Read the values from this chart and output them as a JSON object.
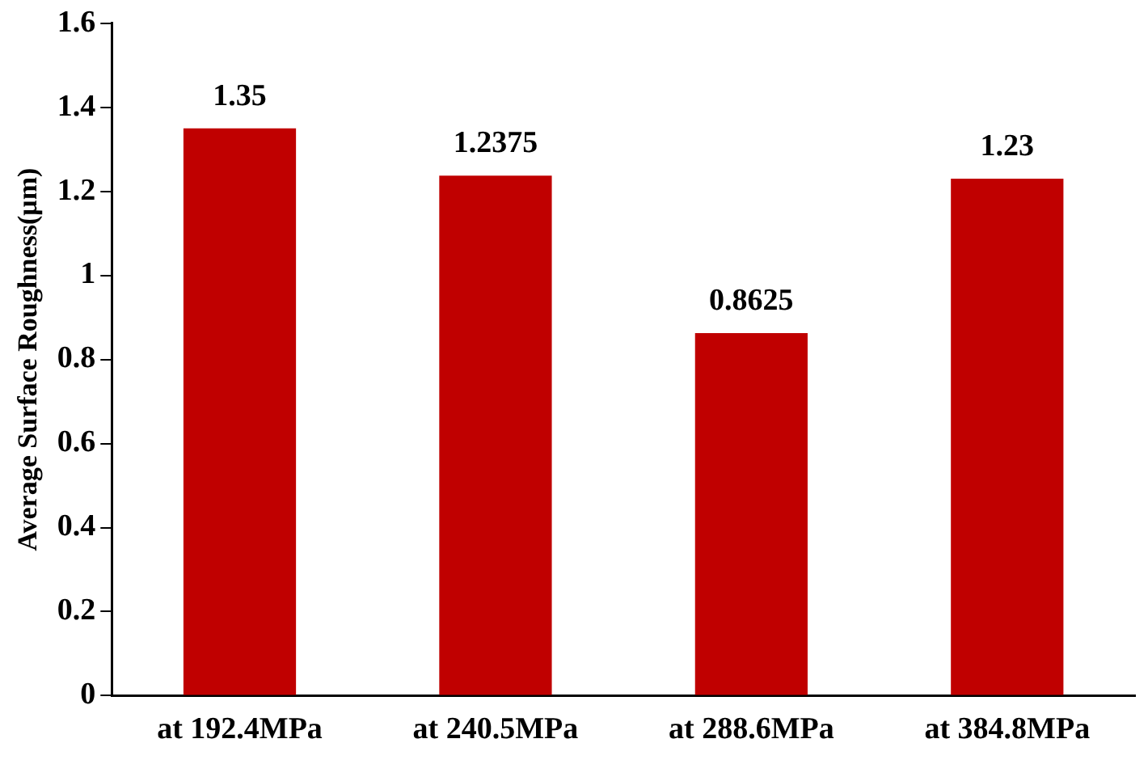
{
  "chart_data": {
    "type": "bar",
    "ylabel": "Average Surface Roughness(μm)",
    "categories": [
      "at 192.4MPa",
      "at 240.5MPa",
      "at 288.6MPa",
      "at 384.8MPa"
    ],
    "values": [
      1.35,
      1.2375,
      0.8625,
      1.23
    ],
    "color": "#c00000",
    "ylim": [
      0,
      1.6
    ],
    "yticks": [
      0,
      0.2,
      0.4,
      0.6,
      0.8,
      1,
      1.2,
      1.4,
      1.6
    ],
    "grid": false,
    "legend": false,
    "data_labels": true
  }
}
